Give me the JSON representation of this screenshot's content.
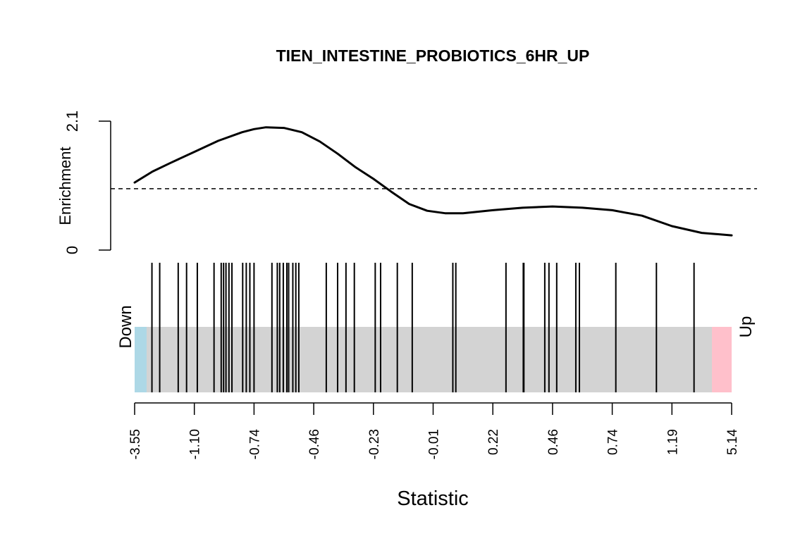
{
  "chart_data": {
    "type": "barcode",
    "title": "TIEN_INTESTINE_PROBIOTICS_6HR_UP",
    "xlabel": "Statistic",
    "ylabel": "Enrichment",
    "y_ticks": [
      "0",
      "2.1"
    ],
    "ylim": [
      0,
      2.1
    ],
    "reference_line": 1,
    "x_tick_labels": [
      "-3.55",
      "-1.10",
      "-0.74",
      "-0.46",
      "-0.23",
      "-0.01",
      "0.22",
      "0.46",
      "0.74",
      "1.19",
      "5.14"
    ],
    "bar_labels": {
      "left": "Down",
      "right": "Up"
    },
    "colors": {
      "down_region": "#ADD8E6",
      "middle_region": "#D3D3D3",
      "up_region": "#FFC0CB",
      "curve": "#000000",
      "bars": "#000000"
    },
    "barcode_region_limits": {
      "down_end": 0.02,
      "up_start": 0.967
    },
    "gene_rank_positions": [
      0.029,
      0.042,
      0.073,
      0.087,
      0.105,
      0.133,
      0.145,
      0.149,
      0.153,
      0.158,
      0.163,
      0.181,
      0.187,
      0.193,
      0.2,
      0.23,
      0.239,
      0.243,
      0.249,
      0.255,
      0.258,
      0.265,
      0.27,
      0.275,
      0.321,
      0.34,
      0.354,
      0.368,
      0.403,
      0.412,
      0.44,
      0.465,
      0.533,
      0.538,
      0.622,
      0.651,
      0.652,
      0.687,
      0.694,
      0.707,
      0.739,
      0.745,
      0.806,
      0.874,
      0.937
    ],
    "enrichment_curve": {
      "x": [
        0,
        0.03,
        0.06,
        0.1,
        0.14,
        0.18,
        0.2,
        0.22,
        0.25,
        0.28,
        0.31,
        0.34,
        0.37,
        0.4,
        0.43,
        0.46,
        0.49,
        0.52,
        0.55,
        0.6,
        0.65,
        0.7,
        0.75,
        0.8,
        0.85,
        0.9,
        0.95,
        1.0
      ],
      "y": [
        1.1,
        1.28,
        1.42,
        1.6,
        1.78,
        1.92,
        1.97,
        2.0,
        1.99,
        1.92,
        1.77,
        1.57,
        1.35,
        1.16,
        0.95,
        0.75,
        0.64,
        0.6,
        0.6,
        0.65,
        0.69,
        0.71,
        0.69,
        0.65,
        0.56,
        0.39,
        0.28,
        0.24
      ]
    }
  }
}
